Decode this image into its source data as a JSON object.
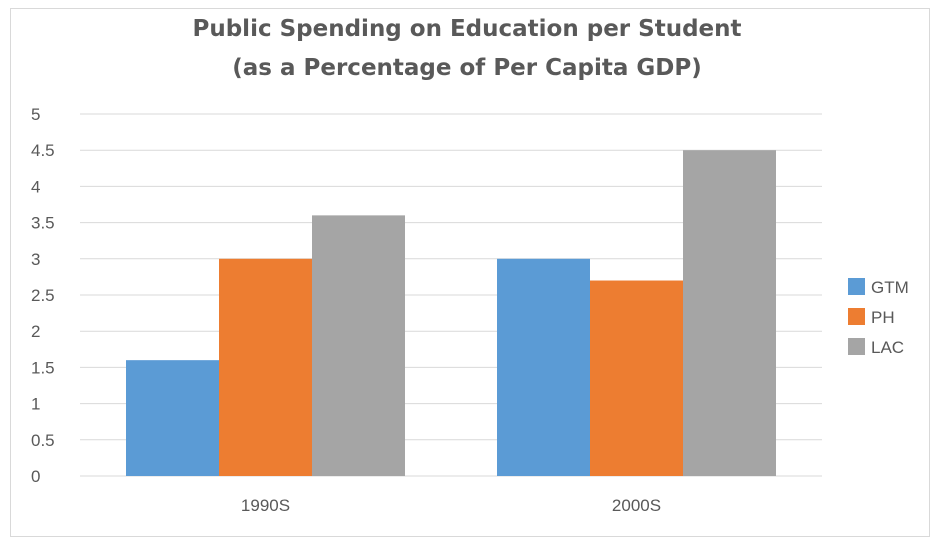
{
  "chart_data": {
    "type": "bar",
    "title": "Public Spending on Education per Student",
    "subtitle": "(as a Percentage of Per Capita GDP)",
    "categories": [
      "1990S",
      "2000S"
    ],
    "series": [
      {
        "name": "GTM",
        "values": [
          1.6,
          3.0
        ],
        "color": "#5B9BD5"
      },
      {
        "name": "PH",
        "values": [
          3.0,
          2.7
        ],
        "color": "#ED7D31"
      },
      {
        "name": "LAC",
        "values": [
          3.6,
          4.5
        ],
        "color": "#A5A5A5"
      }
    ],
    "ylim": [
      0,
      5
    ],
    "yticks": [
      "0",
      "0.5",
      "1",
      "1.5",
      "2",
      "2.5",
      "3",
      "3.5",
      "4",
      "4.5",
      "5"
    ],
    "xlabel": "",
    "ylabel": "",
    "grid": true,
    "legend_position": "right"
  }
}
